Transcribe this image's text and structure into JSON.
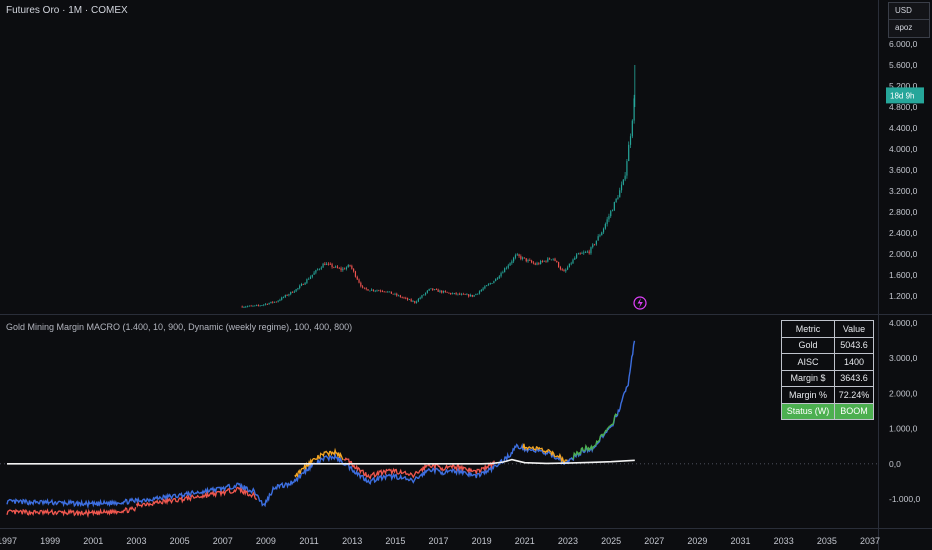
{
  "header": {
    "symbol_title": "Futures Oro · 1M · COMEX",
    "currency": "USD",
    "scale_label": "apoz"
  },
  "price_scale": {
    "ticks": [
      "6.000,0",
      "5.600,0",
      "5.200,0",
      "4.800,0",
      "4.400,0",
      "4.000,0",
      "3.600,0",
      "3.200,0",
      "2.800,0",
      "2.400,0",
      "2.000,0",
      "1.600,0",
      "1.200,0"
    ],
    "countdown_label": "18d 9h",
    "countdown_color": "#26a69a"
  },
  "indicator": {
    "title": "Gold Mining Margin MACRO (1.400, 10, 900, Dynamic (weekly regime), 100, 400, 800)",
    "ticks": [
      "4.000,0",
      "3.000,0",
      "2.000,0",
      "1.000,0",
      "0,0",
      "-1.000,0"
    ]
  },
  "x_axis": {
    "labels": [
      "1997",
      "1999",
      "2001",
      "2003",
      "2005",
      "2007",
      "2009",
      "2011",
      "2013",
      "2015",
      "2017",
      "2019",
      "2021",
      "2023",
      "2025",
      "2027",
      "2029",
      "2031",
      "2033",
      "2035",
      "2037"
    ]
  },
  "metrics_table": {
    "header": [
      "Metric",
      "Value"
    ],
    "rows": [
      {
        "metric": "Gold",
        "value": "5043.6"
      },
      {
        "metric": "AISC",
        "value": "1400"
      },
      {
        "metric": "Margin $",
        "value": "3643.6"
      },
      {
        "metric": "Margin %",
        "value": "72.24%"
      }
    ],
    "status": {
      "metric": "Status (W)",
      "value": "BOOM",
      "color": "#4caf50"
    }
  },
  "colors": {
    "background": "#0c0d10",
    "up": "#26a69a",
    "down": "#ef5350",
    "margin_line_blue": "#3d6fe0",
    "margin_line_red": "#f0584f",
    "margin_line_orange": "#f5a623",
    "margin_line_green": "#4caf50",
    "aisc_line": "#f2f2f2",
    "alert_icon": "#e040fb"
  },
  "chart_data": [
    {
      "type": "candlestick",
      "title": "Futures Oro · 1M · COMEX",
      "ylim": [
        1000,
        6200
      ],
      "xlim": [
        1997,
        2037
      ],
      "anchors": [
        {
          "x": 2007.9,
          "y": 1000
        },
        {
          "x": 2008.6,
          "y": 1010
        },
        {
          "x": 2009.5,
          "y": 1100
        },
        {
          "x": 2010.5,
          "y": 1350
        },
        {
          "x": 2011.7,
          "y": 1820
        },
        {
          "x": 2012.5,
          "y": 1700
        },
        {
          "x": 2012.9,
          "y": 1780
        },
        {
          "x": 2013.5,
          "y": 1330
        },
        {
          "x": 2014.5,
          "y": 1300
        },
        {
          "x": 2015.9,
          "y": 1080
        },
        {
          "x": 2016.6,
          "y": 1330
        },
        {
          "x": 2017.5,
          "y": 1250
        },
        {
          "x": 2018.6,
          "y": 1200
        },
        {
          "x": 2019.6,
          "y": 1500
        },
        {
          "x": 2020.6,
          "y": 1970
        },
        {
          "x": 2021.5,
          "y": 1800
        },
        {
          "x": 2022.3,
          "y": 1930
        },
        {
          "x": 2022.8,
          "y": 1640
        },
        {
          "x": 2023.4,
          "y": 1970
        },
        {
          "x": 2024.0,
          "y": 2050
        },
        {
          "x": 2024.6,
          "y": 2450
        },
        {
          "x": 2025.2,
          "y": 3000
        },
        {
          "x": 2025.6,
          "y": 3400
        },
        {
          "x": 2025.9,
          "y": 4300
        },
        {
          "x": 2026.1,
          "y": 5040
        }
      ],
      "last_high": 5600
    },
    {
      "type": "line",
      "title": "Gold Mining Margin MACRO (1.400, 10, 900, Dynamic (weekly regime), 100, 400, 800)",
      "ylim": [
        -1300,
        4300
      ],
      "xlim": [
        1997,
        2037
      ],
      "series": [
        {
          "values_x": [
            1997,
            1999,
            2001,
            2003,
            2005,
            2006,
            2007,
            2007.7,
            2008.1,
            2008.5,
            2008.9,
            2009.4,
            2010,
            2010.5,
            2011,
            2011.7,
            2012.2,
            2012.9,
            2013.4,
            2013.8,
            2014.3,
            2015,
            2015.8,
            2016.6,
            2017.3,
            2018,
            2018.7,
            2019.3,
            2019.7,
            2020.3,
            2020.6,
            2021.2,
            2021.7,
            2022.2,
            2022.6,
            2022.9,
            2023.4,
            2023.8,
            2024.2,
            2024.6,
            2025.0,
            2025.4,
            2025.8,
            2026.1
          ],
          "values": [
            -1080,
            -1100,
            -1150,
            -1050,
            -900,
            -800,
            -700,
            -600,
            -700,
            -800,
            -1200,
            -650,
            -600,
            -400,
            -100,
            150,
            200,
            -100,
            -350,
            -500,
            -400,
            -350,
            -500,
            -150,
            -250,
            -200,
            -350,
            -200,
            -50,
            250,
            500,
            400,
            350,
            250,
            150,
            0,
            250,
            400,
            450,
            800,
            1000,
            1600,
            2300,
            3600
          ]
        },
        {
          "name": "AISC",
          "values_x": [
            1997,
            2019,
            2019.5,
            2020,
            2020.4,
            2020.8,
            2021,
            2021.5,
            2022,
            2023,
            2024,
            2025,
            2026.1
          ],
          "values": [
            0,
            0,
            10,
            50,
            120,
            60,
            30,
            20,
            10,
            20,
            40,
            60,
            100
          ]
        }
      ]
    }
  ]
}
